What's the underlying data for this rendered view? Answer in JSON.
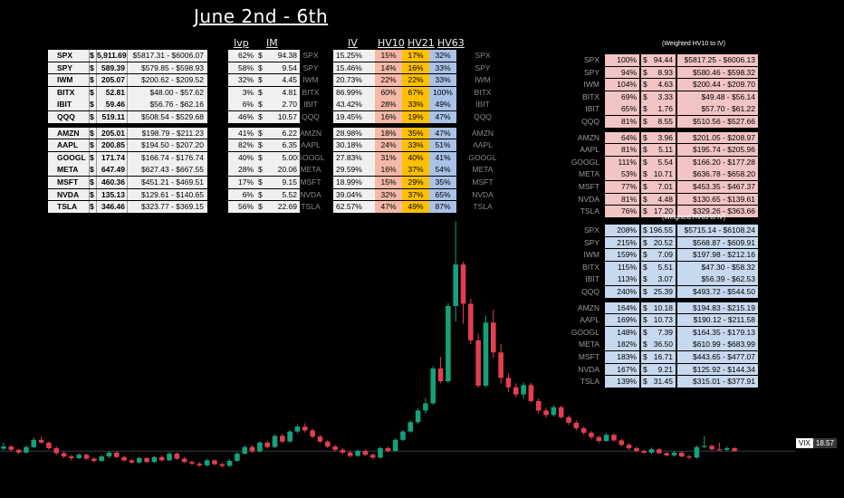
{
  "title": "June 2nd - 6th",
  "headers": {
    "ivp": "Ivp",
    "im": "IM",
    "iv": "IV",
    "hv10": "HV10",
    "hv21": "HV21",
    "hv63": "HV63"
  },
  "colors": {
    "red": "#e43d50",
    "green": "#15a17a",
    "pink": "#f2c4c4",
    "blue": "#c7d9ef",
    "hv10": "#f4b9a8",
    "hv21": "#ffc000",
    "hv63": "#a9c2e8"
  },
  "groups": [
    [
      {
        "ticker": "SPX",
        "price": "5,911.69",
        "range": "$5817.31 - $6006.07",
        "ivp": "62%",
        "im": "94.38",
        "iv": "15.25%",
        "hv10": "15%",
        "hv21": "17%",
        "hv63": "32%"
      },
      {
        "ticker": "SPY",
        "price": "589.39",
        "range": "$579.85 - $598.93",
        "ivp": "58%",
        "im": "9.54",
        "iv": "15.46%",
        "hv10": "14%",
        "hv21": "16%",
        "hv63": "33%"
      },
      {
        "ticker": "IWM",
        "price": "205.07",
        "range": "$200.62 - $209.52",
        "ivp": "32%",
        "im": "4.45",
        "iv": "20.73%",
        "hv10": "22%",
        "hv21": "22%",
        "hv63": "33%"
      },
      {
        "ticker": "BITX",
        "price": "52.81",
        "range": "$48.00 - $57.62",
        "ivp": "3%",
        "im": "4.81",
        "iv": "86.99%",
        "hv10": "60%",
        "hv21": "67%",
        "hv63": "100%"
      },
      {
        "ticker": "IBIT",
        "price": "59.46",
        "range": "$56.76 - $62.16",
        "ivp": "6%",
        "im": "2.70",
        "iv": "43.42%",
        "hv10": "28%",
        "hv21": "33%",
        "hv63": "49%"
      },
      {
        "ticker": "QQQ",
        "price": "519.11",
        "range": "$508.54 - $529.68",
        "ivp": "46%",
        "im": "10.57",
        "iv": "19.45%",
        "hv10": "16%",
        "hv21": "19%",
        "hv63": "47%"
      }
    ],
    [
      {
        "ticker": "AMZN",
        "price": "205.01",
        "range": "$198.79 - $211.23",
        "ivp": "41%",
        "im": "6.22",
        "iv": "28.98%",
        "hv10": "18%",
        "hv21": "35%",
        "hv63": "47%"
      },
      {
        "ticker": "AAPL",
        "price": "200.85",
        "range": "$194.50 - $207.20",
        "ivp": "82%",
        "im": "6.35",
        "iv": "30.18%",
        "hv10": "24%",
        "hv21": "33%",
        "hv63": "51%"
      },
      {
        "ticker": "GOOGL",
        "price": "171.74",
        "range": "$166.74 - $176.74",
        "ivp": "40%",
        "im": "5.00",
        "iv": "27.83%",
        "hv10": "31%",
        "hv21": "40%",
        "hv63": "41%"
      },
      {
        "ticker": "META",
        "price": "647.49",
        "range": "$627.43 - $667.55",
        "ivp": "28%",
        "im": "20.06",
        "iv": "29.59%",
        "hv10": "16%",
        "hv21": "37%",
        "hv63": "54%"
      },
      {
        "ticker": "MSFT",
        "price": "460.36",
        "range": "$451.21 - $469.51",
        "ivp": "17%",
        "im": "9.15",
        "iv": "18.99%",
        "hv10": "15%",
        "hv21": "29%",
        "hv63": "35%"
      },
      {
        "ticker": "NVDA",
        "price": "135.13",
        "range": "$129.61 - $140.65",
        "ivp": "6%",
        "im": "5.52",
        "iv": "39.04%",
        "hv10": "32%",
        "hv21": "37%",
        "hv63": "65%"
      },
      {
        "ticker": "TSLA",
        "price": "346.46",
        "range": "$323.77 - $369.15",
        "ivp": "56%",
        "im": "22.69",
        "iv": "62.57%",
        "hv10": "47%",
        "hv21": "49%",
        "hv63": "87%"
      }
    ]
  ],
  "hv10_weighted": {
    "title": "(Weighted HV10 to IV)",
    "groups": [
      [
        {
          "ticker": "SPX",
          "pct": "100%",
          "val": "94.44",
          "range": "$5817.25 - $6006.13"
        },
        {
          "ticker": "SPY",
          "pct": "94%",
          "val": "8.93",
          "range": "$580.46 - $598.32"
        },
        {
          "ticker": "IWM",
          "pct": "104%",
          "val": "4.63",
          "range": "$200.44 - $209.70"
        },
        {
          "ticker": "BITX",
          "pct": "69%",
          "val": "3.33",
          "range": "$49.48 - $56.14"
        },
        {
          "ticker": "IBIT",
          "pct": "65%",
          "val": "1.76",
          "range": "$57.70 - $61.22"
        },
        {
          "ticker": "QQQ",
          "pct": "81%",
          "val": "8.55",
          "range": "$510.56 - $527.66"
        }
      ],
      [
        {
          "ticker": "AMZN",
          "pct": "64%",
          "val": "3.96",
          "range": "$201.05 - $208.97"
        },
        {
          "ticker": "AAPL",
          "pct": "81%",
          "val": "5.11",
          "range": "$195.74 - $205.96"
        },
        {
          "ticker": "GOOGL",
          "pct": "111%",
          "val": "5.54",
          "range": "$166.20 - $177.28"
        },
        {
          "ticker": "META",
          "pct": "53%",
          "val": "10.71",
          "range": "$636.78 - $658.20"
        },
        {
          "ticker": "MSFT",
          "pct": "77%",
          "val": "7.01",
          "range": "$453.35 - $467.37"
        },
        {
          "ticker": "NVDA",
          "pct": "81%",
          "val": "4.48",
          "range": "$130.65 - $139.61"
        },
        {
          "ticker": "TSLA",
          "pct": "76%",
          "val": "17.20",
          "range": "$329.26 - $363.66"
        }
      ]
    ]
  },
  "hv63_weighted": {
    "title": "(Weighted HV63 to IV)",
    "groups": [
      [
        {
          "ticker": "SPX",
          "pct": "208%",
          "val": "196.55",
          "range": "$5715.14 - $6108.24"
        },
        {
          "ticker": "SPY",
          "pct": "215%",
          "val": "20.52",
          "range": "$568.87 - $609.91"
        },
        {
          "ticker": "IWM",
          "pct": "159%",
          "val": "7.09",
          "range": "$197.98 - $212.16"
        },
        {
          "ticker": "BITX",
          "pct": "115%",
          "val": "5.51",
          "range": "$47.30 - $58.32"
        },
        {
          "ticker": "IBIT",
          "pct": "113%",
          "val": "3.07",
          "range": "$56.39 - $62.53"
        },
        {
          "ticker": "QQQ",
          "pct": "240%",
          "val": "25.39",
          "range": "$493.72 - $544.50"
        }
      ],
      [
        {
          "ticker": "AMZN",
          "pct": "164%",
          "val": "10.18",
          "range": "$194.83 - $215.19"
        },
        {
          "ticker": "AAPL",
          "pct": "169%",
          "val": "10.73",
          "range": "$190.12 - $211.58"
        },
        {
          "ticker": "GOOGL",
          "pct": "148%",
          "val": "7.39",
          "range": "$164.35 - $179.13"
        },
        {
          "ticker": "META",
          "pct": "182%",
          "val": "36.50",
          "range": "$610.99 - $683.99"
        },
        {
          "ticker": "MSFT",
          "pct": "183%",
          "val": "16.71",
          "range": "$443.65 - $477.07"
        },
        {
          "ticker": "NVDA",
          "pct": "167%",
          "val": "9.21",
          "range": "$125.92 - $144.34"
        },
        {
          "ticker": "TSLA",
          "pct": "139%",
          "val": "31.45",
          "range": "$315.01 - $377.91"
        }
      ]
    ]
  },
  "vix": {
    "label": "VIX",
    "value": "18.57"
  },
  "chart_data": {
    "type": "candlestick",
    "symbol": "VIX",
    "last": 18.57,
    "colors": {
      "up": "#15a17a",
      "down": "#e43d50"
    },
    "candles": [
      [
        19.0,
        20.1,
        18.7,
        19.4
      ],
      [
        19.4,
        19.6,
        18.5,
        18.8
      ],
      [
        18.8,
        19.0,
        18.0,
        18.3
      ],
      [
        18.3,
        19.6,
        18.1,
        19.3
      ],
      [
        19.3,
        21.0,
        19.1,
        20.6
      ],
      [
        20.6,
        21.2,
        19.9,
        20.1
      ],
      [
        20.1,
        20.3,
        18.8,
        19.1
      ],
      [
        19.1,
        19.4,
        17.9,
        18.2
      ],
      [
        18.2,
        18.5,
        17.3,
        17.6
      ],
      [
        17.6,
        17.9,
        16.9,
        17.3
      ],
      [
        17.3,
        18.2,
        17.1,
        17.9
      ],
      [
        17.9,
        18.1,
        17.0,
        17.2
      ],
      [
        17.2,
        17.5,
        16.5,
        16.8
      ],
      [
        16.8,
        17.9,
        16.6,
        17.6
      ],
      [
        17.6,
        18.6,
        17.3,
        18.3
      ],
      [
        18.3,
        18.5,
        17.3,
        17.5
      ],
      [
        17.5,
        17.7,
        16.6,
        16.9
      ],
      [
        16.9,
        17.2,
        16.3,
        16.5
      ],
      [
        16.5,
        17.6,
        16.3,
        17.3
      ],
      [
        17.3,
        17.5,
        16.4,
        16.6
      ],
      [
        16.6,
        17.7,
        16.4,
        17.5
      ],
      [
        17.5,
        17.8,
        16.7,
        16.9
      ],
      [
        16.9,
        18.4,
        16.7,
        18.1
      ],
      [
        18.1,
        18.3,
        17.0,
        17.2
      ],
      [
        17.2,
        17.5,
        16.4,
        16.6
      ],
      [
        16.6,
        16.9,
        16.0,
        16.3
      ],
      [
        16.3,
        16.6,
        15.7,
        16.0
      ],
      [
        16.0,
        17.2,
        15.8,
        16.9
      ],
      [
        16.9,
        17.1,
        16.0,
        16.2
      ],
      [
        16.2,
        16.5,
        15.6,
        15.9
      ],
      [
        15.9,
        17.1,
        15.7,
        16.8
      ],
      [
        16.8,
        18.4,
        16.6,
        18.1
      ],
      [
        18.1,
        19.6,
        17.9,
        19.3
      ],
      [
        19.3,
        19.7,
        18.2,
        18.5
      ],
      [
        18.5,
        20.4,
        18.3,
        20.1
      ],
      [
        20.1,
        20.4,
        19.0,
        19.3
      ],
      [
        19.3,
        21.6,
        19.1,
        21.3
      ],
      [
        21.3,
        21.7,
        20.0,
        20.3
      ],
      [
        20.3,
        22.4,
        20.1,
        22.1
      ],
      [
        22.1,
        23.3,
        21.8,
        23.0
      ],
      [
        23.0,
        23.6,
        21.9,
        22.3
      ],
      [
        22.3,
        22.6,
        20.9,
        21.2
      ],
      [
        21.2,
        21.5,
        20.0,
        20.3
      ],
      [
        20.3,
        20.6,
        19.1,
        19.4
      ],
      [
        19.4,
        19.7,
        18.5,
        18.8
      ],
      [
        18.8,
        19.1,
        18.0,
        18.3
      ],
      [
        18.3,
        18.6,
        17.4,
        17.7
      ],
      [
        17.7,
        18.9,
        17.5,
        18.6
      ],
      [
        18.6,
        18.9,
        17.7,
        17.9
      ],
      [
        17.9,
        18.2,
        17.1,
        17.4
      ],
      [
        17.4,
        19.4,
        17.2,
        19.1
      ],
      [
        19.1,
        19.4,
        18.3,
        18.6
      ],
      [
        18.6,
        20.9,
        18.4,
        20.6
      ],
      [
        20.6,
        22.4,
        20.4,
        22.1
      ],
      [
        22.1,
        24.1,
        21.9,
        23.8
      ],
      [
        23.8,
        26.3,
        23.5,
        25.9
      ],
      [
        25.9,
        28.2,
        25.3,
        27.2
      ],
      [
        27.2,
        33.9,
        26.9,
        33.5
      ],
      [
        33.5,
        35.6,
        30.8,
        31.2
      ],
      [
        31.2,
        45.3,
        30.9,
        44.8
      ],
      [
        44.8,
        60.1,
        42.0,
        52.3
      ],
      [
        52.3,
        52.8,
        41.6,
        45.2
      ],
      [
        45.2,
        46.1,
        37.9,
        38.6
      ],
      [
        38.6,
        39.8,
        30.0,
        30.4
      ],
      [
        30.4,
        43.0,
        30.1,
        41.8
      ],
      [
        41.8,
        44.1,
        35.4,
        36.4
      ],
      [
        36.4,
        37.9,
        30.8,
        31.8
      ],
      [
        31.8,
        32.6,
        29.3,
        30.1
      ],
      [
        30.1,
        30.8,
        28.3,
        28.8
      ],
      [
        28.8,
        31.0,
        28.0,
        30.5
      ],
      [
        30.5,
        30.9,
        27.4,
        27.6
      ],
      [
        27.6,
        28.1,
        25.3,
        25.9
      ],
      [
        25.9,
        26.4,
        24.6,
        25.1
      ],
      [
        25.1,
        26.9,
        24.8,
        26.5
      ],
      [
        26.5,
        26.8,
        24.4,
        24.7
      ],
      [
        24.7,
        25.0,
        23.3,
        23.7
      ],
      [
        23.7,
        24.1,
        22.3,
        22.7
      ],
      [
        22.7,
        23.0,
        21.5,
        21.9
      ],
      [
        21.9,
        22.2,
        20.7,
        21.1
      ],
      [
        21.1,
        21.4,
        20.0,
        20.4
      ],
      [
        20.4,
        21.9,
        20.2,
        21.5
      ],
      [
        21.5,
        21.8,
        20.2,
        20.5
      ],
      [
        20.5,
        20.8,
        19.4,
        19.7
      ],
      [
        19.7,
        20.0,
        18.8,
        19.1
      ],
      [
        19.1,
        19.4,
        18.3,
        18.6
      ],
      [
        18.6,
        18.9,
        18.1,
        18.3
      ],
      [
        18.3,
        19.2,
        18.1,
        18.9
      ],
      [
        18.9,
        19.1,
        18.0,
        18.2
      ],
      [
        18.2,
        18.4,
        17.6,
        17.8
      ],
      [
        17.8,
        18.6,
        17.6,
        18.3
      ],
      [
        18.3,
        18.5,
        17.4,
        17.6
      ],
      [
        17.6,
        17.9,
        17.1,
        17.4
      ],
      [
        17.4,
        19.6,
        17.2,
        19.3
      ],
      [
        19.3,
        21.3,
        19.1,
        19.5
      ],
      [
        19.5,
        19.8,
        18.6,
        18.9
      ],
      [
        18.9,
        20.1,
        18.7,
        18.8
      ],
      [
        18.8,
        19.4,
        18.5,
        19.1
      ],
      [
        19.1,
        19.3,
        18.4,
        18.57
      ]
    ]
  }
}
